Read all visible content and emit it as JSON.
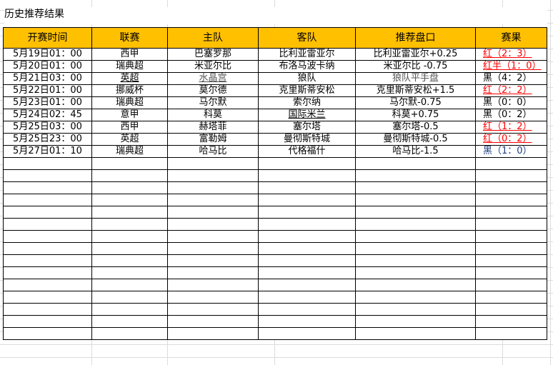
{
  "title": "历史推荐结果",
  "headers": [
    "开赛时间",
    "联赛",
    "主队",
    "客队",
    "推荐盘口",
    "赛果"
  ],
  "colors": {
    "header_bg": "#ffc000",
    "win": "#ff0000",
    "loss": "#000000",
    "loss_alt": "#1f3f7f"
  },
  "rows": [
    {
      "time": "5月19日01：00",
      "league": "西甲",
      "home": "巴塞罗那",
      "away": "比利亚雷亚尔",
      "pick": "比利亚雷亚尔+0.25",
      "result": "红（2：3）",
      "status": "red"
    },
    {
      "time": "5月20日01：00",
      "league": "瑞典超",
      "home": "米亚尔比",
      "away": "布洛马波卡纳",
      "pick": "米亚尔比 -0.75",
      "result": "红半（1：0）",
      "status": "red"
    },
    {
      "time": "5月21日03：00",
      "league": "英超",
      "home": "水晶宫",
      "away": "狼队",
      "pick": "狼队平手盘",
      "result": "黑（4：2）",
      "status": "black"
    },
    {
      "time": "5月22日01：00",
      "league": "挪威杯",
      "home": "莫尔德",
      "away": "克里斯蒂安松",
      "pick": "克里斯蒂安松+1.5",
      "result": "红（2：2）",
      "status": "red"
    },
    {
      "time": "5月23日01：00",
      "league": "瑞典超",
      "home": "马尔默",
      "away": "索尔纳",
      "pick": "马尔默-0.75",
      "result": "黑（0：0）",
      "status": "black"
    },
    {
      "time": "5月24日02：45",
      "league": "意甲",
      "home": "科莫",
      "away": "国际米兰",
      "pick": "科莫+0.75",
      "result": "黑（0：2）",
      "status": "black"
    },
    {
      "time": "5月25日03：00",
      "league": "西甲",
      "home": "赫塔菲",
      "away": "塞尔塔",
      "pick": "塞尔塔-0.5",
      "result": "红（1：2）",
      "status": "red"
    },
    {
      "time": "5月25日23：00",
      "league": "英超",
      "home": "富勒姆",
      "away": "曼彻斯特城",
      "pick": "曼彻斯特城-0.5",
      "result": "红（0：2）",
      "status": "red"
    },
    {
      "time": "5月27日01：10",
      "league": "瑞典超",
      "home": "哈马比",
      "away": "代格福什",
      "pick": "哈马比-1.5",
      "result": "黑（1：0）",
      "status": "blue"
    }
  ]
}
